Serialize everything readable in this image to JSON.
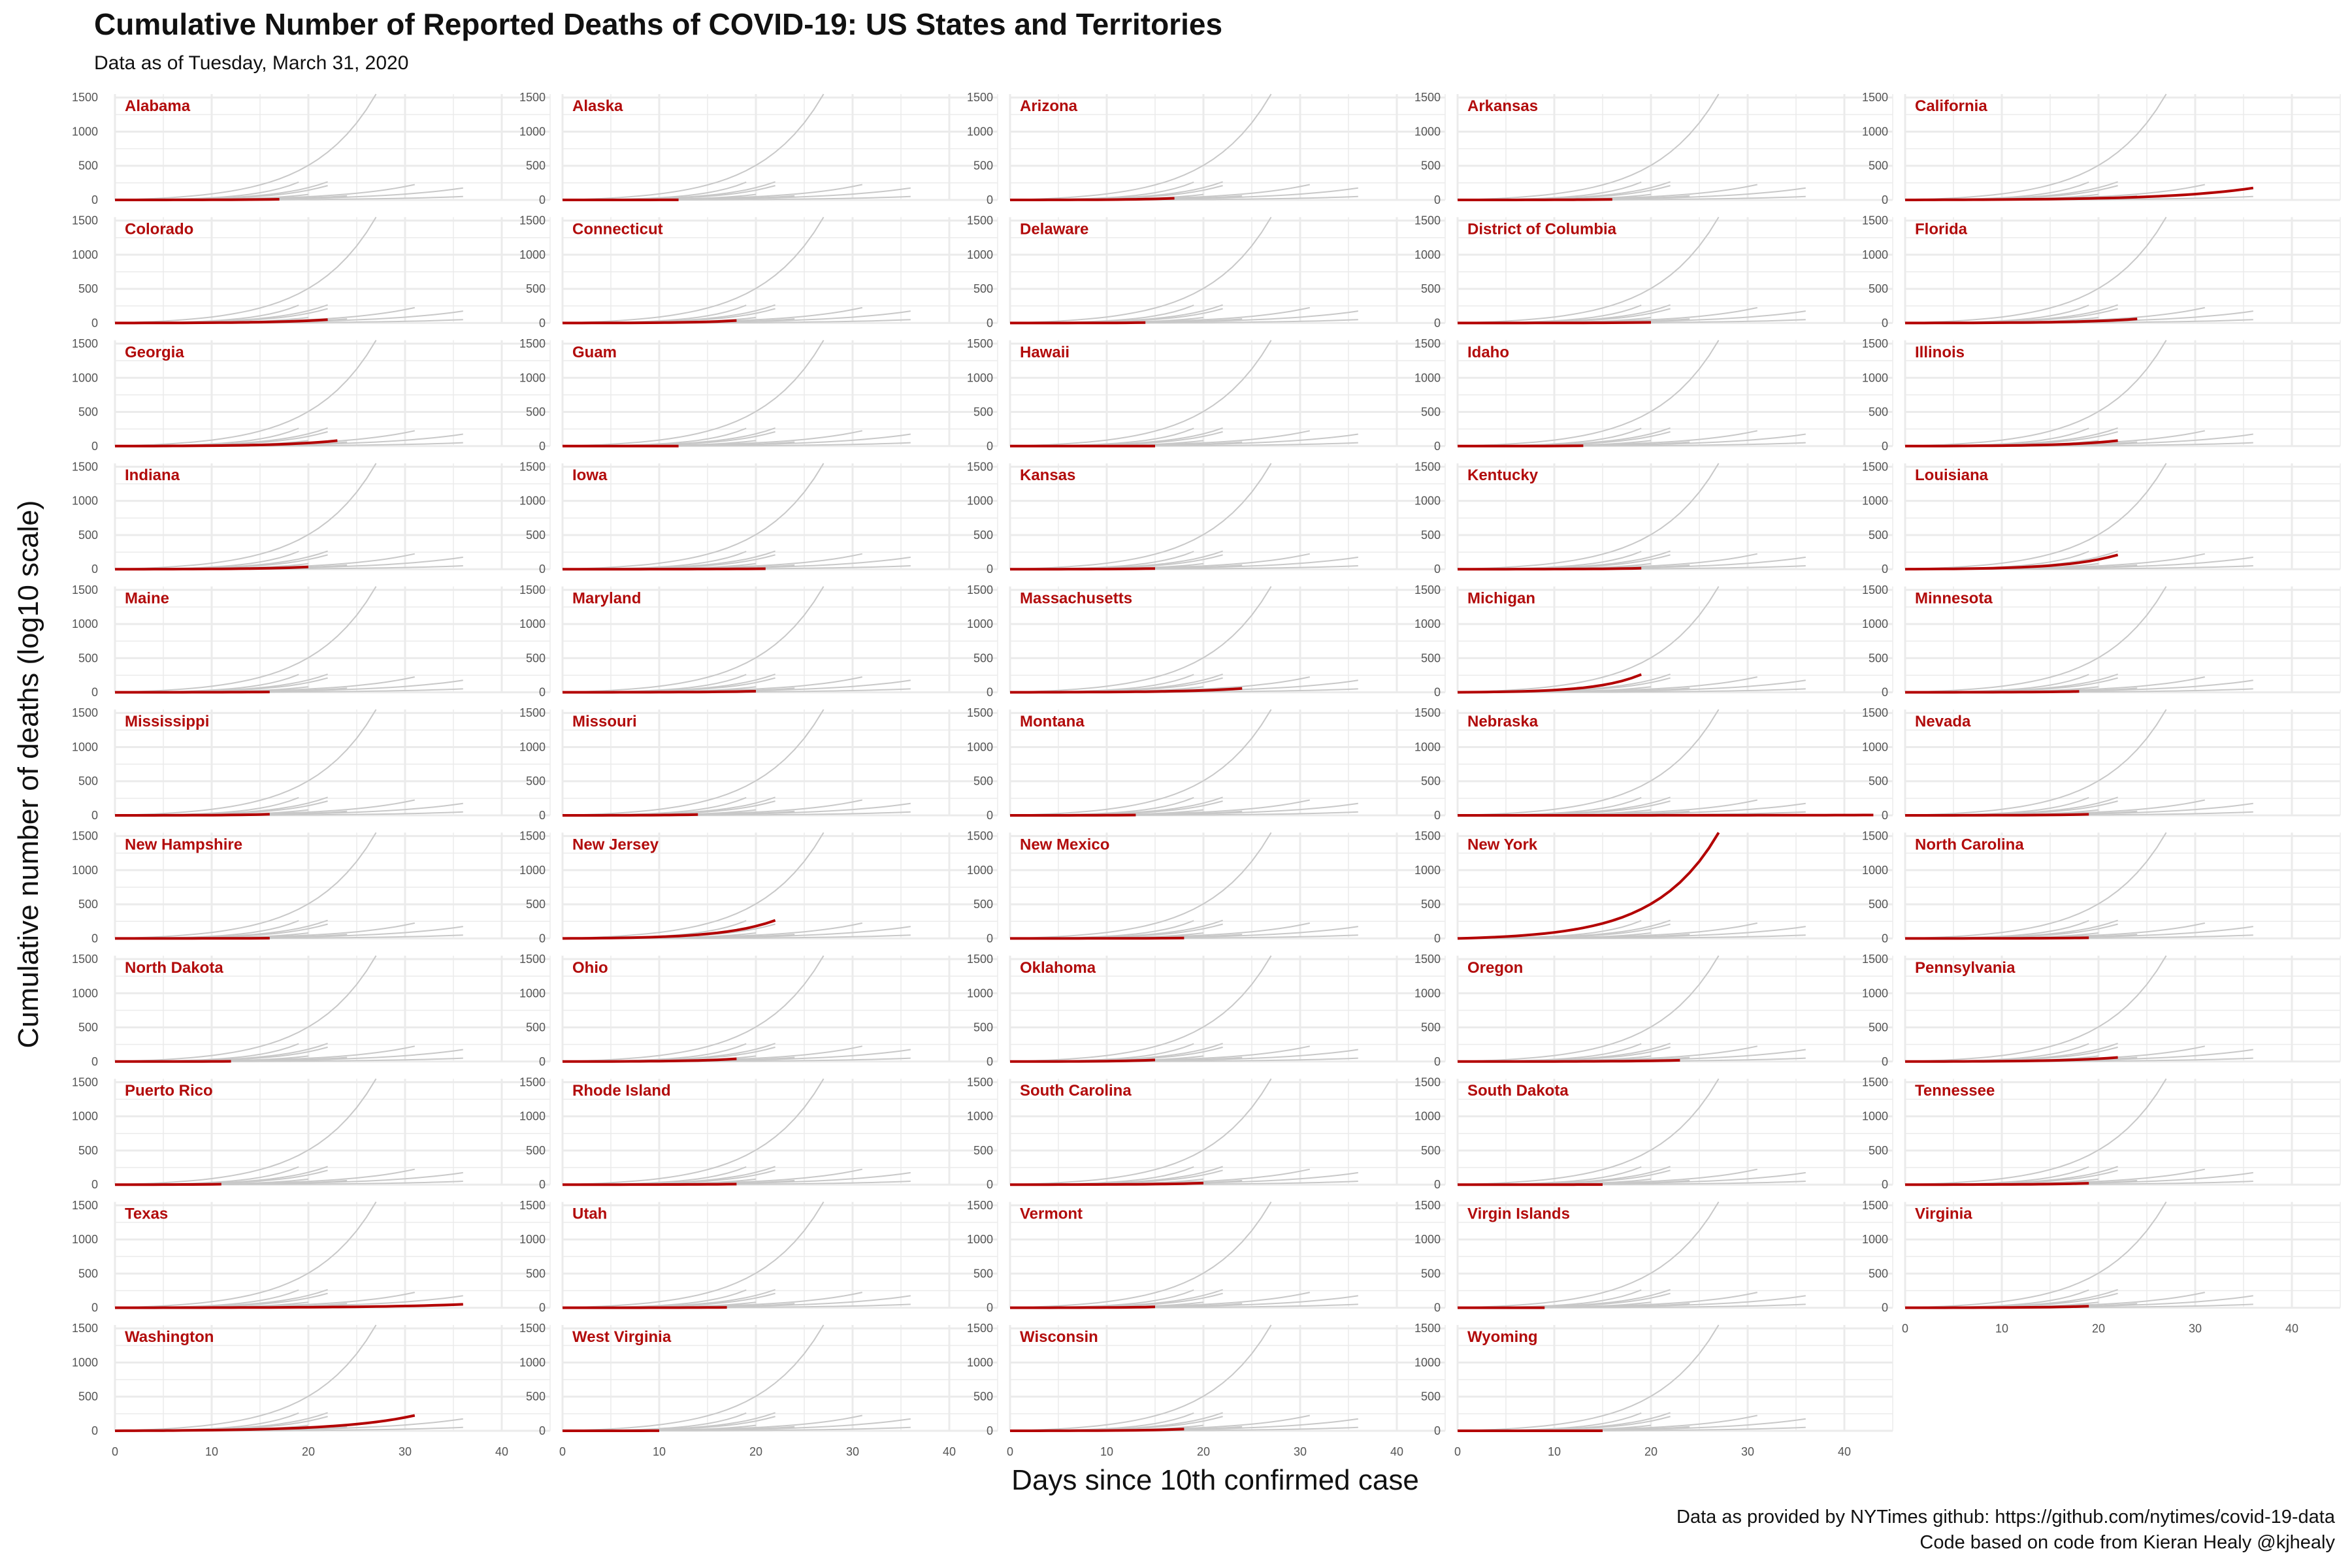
{
  "title": "Cumulative Number of Reported Deaths of COVID-19: US States and Territories",
  "subtitle": "Data as of Tuesday, March 31, 2020",
  "caption_line1": "Data as provided by NYTimes github: https://github.com/nytimes/covid-19-data",
  "caption_line2": "Code based on code from Kieran Healy @kjhealy",
  "colors": {
    "highlight": "#b30000",
    "background_lines": "#c8c8c8",
    "grid": "#ebebeb",
    "label": "#b20c0c"
  },
  "chart_data": {
    "type": "line",
    "layout": "small-multiples",
    "xlabel": "Days since 10th confirmed case",
    "ylabel": "Cumulative number of deaths (log10 scale)",
    "xlim": [
      0,
      45
    ],
    "ylim": [
      0,
      1550
    ],
    "x_ticks": [
      0,
      10,
      20,
      30,
      40
    ],
    "y_ticks": [
      0,
      500,
      1000,
      1500
    ],
    "grid": true,
    "background_series_note": "every panel shows all other states in light grey",
    "panels": [
      {
        "name": "Alabama",
        "days": 17,
        "final": 10
      },
      {
        "name": "Alaska",
        "days": 12,
        "final": 1
      },
      {
        "name": "Arizona",
        "days": 17,
        "final": 24
      },
      {
        "name": "Arkansas",
        "days": 16,
        "final": 8
      },
      {
        "name": "California",
        "days": 36,
        "final": 175
      },
      {
        "name": "Colorado",
        "days": 22,
        "final": 50
      },
      {
        "name": "Connecticut",
        "days": 18,
        "final": 36
      },
      {
        "name": "Delaware",
        "days": 14,
        "final": 6
      },
      {
        "name": "District of Columbia",
        "days": 20,
        "final": 9
      },
      {
        "name": "Florida",
        "days": 24,
        "final": 60
      },
      {
        "name": "Georgia",
        "days": 23,
        "final": 80
      },
      {
        "name": "Guam",
        "days": 12,
        "final": 1
      },
      {
        "name": "Hawaii",
        "days": 15,
        "final": 1
      },
      {
        "name": "Idaho",
        "days": 13,
        "final": 5
      },
      {
        "name": "Illinois",
        "days": 22,
        "final": 80
      },
      {
        "name": "Indiana",
        "days": 20,
        "final": 33
      },
      {
        "name": "Iowa",
        "days": 21,
        "final": 7
      },
      {
        "name": "Kansas",
        "days": 15,
        "final": 10
      },
      {
        "name": "Kentucky",
        "days": 19,
        "final": 13
      },
      {
        "name": "Louisiana",
        "days": 22,
        "final": 210
      },
      {
        "name": "Maine",
        "days": 16,
        "final": 5
      },
      {
        "name": "Maryland",
        "days": 20,
        "final": 15
      },
      {
        "name": "Massachusetts",
        "days": 24,
        "final": 56
      },
      {
        "name": "Michigan",
        "days": 19,
        "final": 260
      },
      {
        "name": "Minnesota",
        "days": 18,
        "final": 12
      },
      {
        "name": "Mississippi",
        "days": 16,
        "final": 16
      },
      {
        "name": "Missouri",
        "days": 14,
        "final": 12
      },
      {
        "name": "Montana",
        "days": 13,
        "final": 5
      },
      {
        "name": "Nebraska",
        "days": 43,
        "final": 5
      },
      {
        "name": "Nevada",
        "days": 19,
        "final": 15
      },
      {
        "name": "New Hampshire",
        "days": 16,
        "final": 4
      },
      {
        "name": "New Jersey",
        "days": 22,
        "final": 265
      },
      {
        "name": "New Mexico",
        "days": 18,
        "final": 6
      },
      {
        "name": "New York",
        "days": 27,
        "final": 1550
      },
      {
        "name": "North Carolina",
        "days": 19,
        "final": 10
      },
      {
        "name": "North Dakota",
        "days": 12,
        "final": 3
      },
      {
        "name": "Ohio",
        "days": 18,
        "final": 40
      },
      {
        "name": "Oklahoma",
        "days": 15,
        "final": 23
      },
      {
        "name": "Oregon",
        "days": 23,
        "final": 18
      },
      {
        "name": "Pennsylvania",
        "days": 22,
        "final": 60
      },
      {
        "name": "Puerto Rico",
        "days": 11,
        "final": 7
      },
      {
        "name": "Rhode Island",
        "days": 18,
        "final": 8
      },
      {
        "name": "South Carolina",
        "days": 20,
        "final": 22
      },
      {
        "name": "South Dakota",
        "days": 15,
        "final": 1
      },
      {
        "name": "Tennessee",
        "days": 19,
        "final": 20
      },
      {
        "name": "Texas",
        "days": 36,
        "final": 50
      },
      {
        "name": "Utah",
        "days": 17,
        "final": 5
      },
      {
        "name": "Vermont",
        "days": 15,
        "final": 12
      },
      {
        "name": "Virgin Islands",
        "days": 9,
        "final": 0
      },
      {
        "name": "Virginia",
        "days": 19,
        "final": 22
      },
      {
        "name": "Washington",
        "days": 31,
        "final": 225
      },
      {
        "name": "West Virginia",
        "days": 10,
        "final": 1
      },
      {
        "name": "Wisconsin",
        "days": 18,
        "final": 25
      },
      {
        "name": "Wyoming",
        "days": 15,
        "final": 0
      }
    ]
  }
}
